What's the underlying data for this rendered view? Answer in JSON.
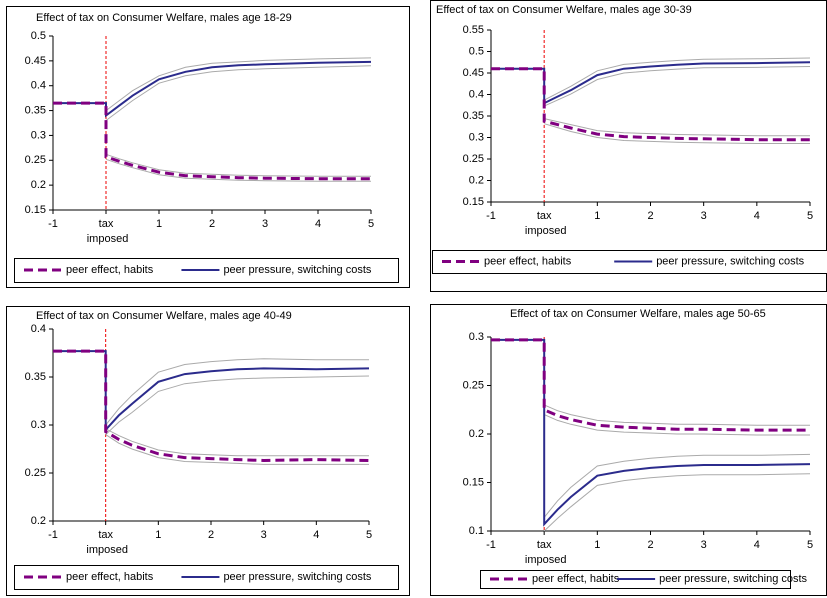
{
  "chart_data": [
    {
      "type": "line",
      "title": "Effect of tax on Consumer Welfare,  males age 18-29",
      "x": [
        -1,
        0,
        0,
        0.25,
        0.5,
        1,
        1.5,
        2,
        2.5,
        3,
        4,
        5
      ],
      "xlim": [
        -1,
        5
      ],
      "xticks": [
        -1,
        {
          "value": 0,
          "label": "tax imposed"
        },
        1,
        2,
        3,
        4,
        5
      ],
      "ylim": [
        0.15,
        0.5
      ],
      "yticks": [
        0.15,
        0.2,
        0.25,
        0.3,
        0.35,
        0.4,
        0.45,
        0.5
      ],
      "grid": false,
      "series": [
        {
          "name": "peer effect, habits",
          "color": "#800080",
          "dashed": true,
          "values": [
            0.365,
            0.365,
            0.257,
            0.248,
            0.24,
            0.226,
            0.219,
            0.217,
            0.215,
            0.214,
            0.213,
            0.213
          ],
          "lower": [
            null,
            null,
            0.252,
            0.243,
            0.235,
            0.221,
            0.214,
            0.212,
            0.21,
            0.209,
            0.208,
            0.208
          ],
          "upper": [
            null,
            null,
            0.262,
            0.253,
            0.245,
            0.231,
            0.224,
            0.222,
            0.22,
            0.219,
            0.218,
            0.218
          ]
        },
        {
          "name": "peer pressure, switching costs",
          "color": "#2b2b8c",
          "dashed": false,
          "values": [
            0.365,
            0.365,
            0.34,
            0.36,
            0.38,
            0.413,
            0.428,
            0.437,
            0.441,
            0.443,
            0.446,
            0.448
          ],
          "lower": [
            null,
            null,
            0.33,
            0.35,
            0.37,
            0.405,
            0.42,
            0.428,
            0.432,
            0.434,
            0.437,
            0.44
          ],
          "upper": [
            null,
            null,
            0.35,
            0.37,
            0.39,
            0.42,
            0.437,
            0.445,
            0.448,
            0.451,
            0.454,
            0.456
          ]
        }
      ]
    },
    {
      "type": "line",
      "title": "Effect of tax on Consumer Welfare,  males age 30-39",
      "x": [
        -1,
        0,
        0,
        0.25,
        0.5,
        1,
        1.5,
        2,
        2.5,
        3,
        4,
        5
      ],
      "xlim": [
        -1,
        5
      ],
      "xticks": [
        -1,
        {
          "value": 0,
          "label": "tax imposed"
        },
        1,
        2,
        3,
        4,
        5
      ],
      "ylim": [
        0.15,
        0.55
      ],
      "yticks": [
        0.15,
        0.2,
        0.25,
        0.3,
        0.35,
        0.4,
        0.45,
        0.5,
        0.55
      ],
      "grid": false,
      "series": [
        {
          "name": "peer effect, habits",
          "color": "#800080",
          "dashed": true,
          "values": [
            0.46,
            0.46,
            0.338,
            0.33,
            0.322,
            0.308,
            0.302,
            0.3,
            0.298,
            0.297,
            0.295,
            0.295
          ],
          "lower": [
            null,
            null,
            0.332,
            0.323,
            0.314,
            0.3,
            0.293,
            0.291,
            0.289,
            0.288,
            0.286,
            0.286
          ],
          "upper": [
            null,
            null,
            0.344,
            0.337,
            0.33,
            0.316,
            0.311,
            0.309,
            0.307,
            0.306,
            0.304,
            0.304
          ]
        },
        {
          "name": "peer pressure, switching costs",
          "color": "#2b2b8c",
          "dashed": false,
          "values": [
            0.46,
            0.46,
            0.38,
            0.395,
            0.41,
            0.445,
            0.46,
            0.465,
            0.469,
            0.472,
            0.473,
            0.475
          ],
          "lower": [
            null,
            null,
            0.373,
            0.387,
            0.401,
            0.435,
            0.45,
            0.455,
            0.459,
            0.462,
            0.463,
            0.465
          ],
          "upper": [
            null,
            null,
            0.387,
            0.403,
            0.419,
            0.455,
            0.47,
            0.475,
            0.479,
            0.482,
            0.483,
            0.485
          ]
        }
      ]
    },
    {
      "type": "line",
      "title": "Effect of tax on Consumer Welfare,  males age 40-49",
      "x": [
        -1,
        0,
        0,
        0.25,
        0.5,
        1,
        1.5,
        2,
        2.5,
        3,
        4,
        5
      ],
      "xlim": [
        -1,
        5
      ],
      "xticks": [
        -1,
        {
          "value": 0,
          "label": "tax imposed"
        },
        1,
        2,
        3,
        4,
        5
      ],
      "ylim": [
        0.2,
        0.4
      ],
      "yticks": [
        0.2,
        0.25,
        0.3,
        0.35,
        0.4
      ],
      "grid": false,
      "series": [
        {
          "name": "peer effect, habits",
          "color": "#800080",
          "dashed": true,
          "values": [
            0.377,
            0.377,
            0.293,
            0.285,
            0.279,
            0.27,
            0.266,
            0.265,
            0.264,
            0.263,
            0.264,
            0.263
          ],
          "lower": [
            null,
            null,
            0.29,
            0.281,
            0.275,
            0.266,
            0.262,
            0.261,
            0.26,
            0.259,
            0.259,
            0.259
          ],
          "upper": [
            null,
            null,
            0.296,
            0.289,
            0.283,
            0.274,
            0.27,
            0.269,
            0.268,
            0.268,
            0.268,
            0.268
          ]
        },
        {
          "name": "peer pressure, switching costs",
          "color": "#2b2b8c",
          "dashed": false,
          "values": [
            0.377,
            0.377,
            0.295,
            0.31,
            0.322,
            0.345,
            0.353,
            0.356,
            0.358,
            0.359,
            0.358,
            0.359
          ],
          "lower": [
            null,
            null,
            0.29,
            0.303,
            0.313,
            0.335,
            0.343,
            0.346,
            0.348,
            0.349,
            0.35,
            0.351
          ],
          "upper": [
            null,
            null,
            0.3,
            0.317,
            0.331,
            0.355,
            0.363,
            0.366,
            0.368,
            0.369,
            0.368,
            0.368
          ]
        }
      ]
    },
    {
      "type": "line",
      "title": "Effect of tax on Consumer Welfare,  males age 50-65",
      "x": [
        -1,
        0,
        0,
        0.25,
        0.5,
        1,
        1.5,
        2,
        2.5,
        3,
        4,
        5
      ],
      "xlim": [
        -1,
        5
      ],
      "xticks": [
        -1,
        {
          "value": 0,
          "label": "tax imposed"
        },
        1,
        2,
        3,
        4,
        5
      ],
      "ylim": [
        0.1,
        0.3
      ],
      "yticks": [
        0.1,
        0.15,
        0.2,
        0.25,
        0.3
      ],
      "grid": false,
      "series": [
        {
          "name": "peer effect, habits",
          "color": "#800080",
          "dashed": true,
          "values": [
            0.297,
            0.297,
            0.225,
            0.219,
            0.215,
            0.209,
            0.207,
            0.206,
            0.205,
            0.205,
            0.204,
            0.204
          ],
          "lower": [
            null,
            null,
            0.22,
            0.214,
            0.21,
            0.204,
            0.202,
            0.201,
            0.2,
            0.2,
            0.199,
            0.199
          ],
          "upper": [
            null,
            null,
            0.23,
            0.224,
            0.22,
            0.214,
            0.212,
            0.211,
            0.21,
            0.21,
            0.209,
            0.209
          ]
        },
        {
          "name": "peer pressure, switching costs",
          "color": "#2b2b8c",
          "dashed": false,
          "values": [
            0.297,
            0.297,
            0.107,
            0.122,
            0.135,
            0.157,
            0.162,
            0.165,
            0.167,
            0.168,
            0.168,
            0.169
          ],
          "lower": [
            null,
            null,
            0.1,
            0.113,
            0.125,
            0.147,
            0.152,
            0.155,
            0.157,
            0.158,
            0.158,
            0.159
          ],
          "upper": [
            null,
            null,
            0.114,
            0.131,
            0.145,
            0.167,
            0.172,
            0.175,
            0.177,
            0.178,
            0.178,
            0.179
          ]
        }
      ]
    }
  ]
}
